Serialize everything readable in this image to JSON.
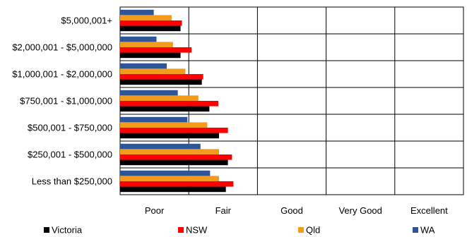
{
  "chart_data": {
    "type": "bar",
    "orientation": "horizontal",
    "categories": [
      "$5,000,001+",
      "$2,000,001 - $5,000,000",
      "$1,000,001 - $2,000,000",
      "$750,001 - $1,000,000",
      "$500,001 - $750,000",
      "$250,001 - $500,000",
      "Less than $250,000"
    ],
    "x_tick_labels": [
      "Poor",
      "Fair",
      "Good",
      "Very Good",
      "Excellent"
    ],
    "xlim": [
      0,
      5
    ],
    "grid": true,
    "legend_position": "bottom",
    "series": [
      {
        "name": "Victoria",
        "color": "#000000",
        "values": [
          0.88,
          0.88,
          1.19,
          1.3,
          1.44,
          1.57,
          1.54
        ]
      },
      {
        "name": "NSW",
        "color": "#ff0000",
        "values": [
          0.9,
          1.04,
          1.21,
          1.43,
          1.57,
          1.63,
          1.65
        ]
      },
      {
        "name": "Qld",
        "color": "#f29b1d",
        "values": [
          0.75,
          0.77,
          0.95,
          1.14,
          1.27,
          1.44,
          1.44
        ]
      },
      {
        "name": "WA",
        "color": "#2f5597",
        "values": [
          0.49,
          0.53,
          0.68,
          0.84,
          0.98,
          1.17,
          1.31
        ]
      }
    ]
  }
}
